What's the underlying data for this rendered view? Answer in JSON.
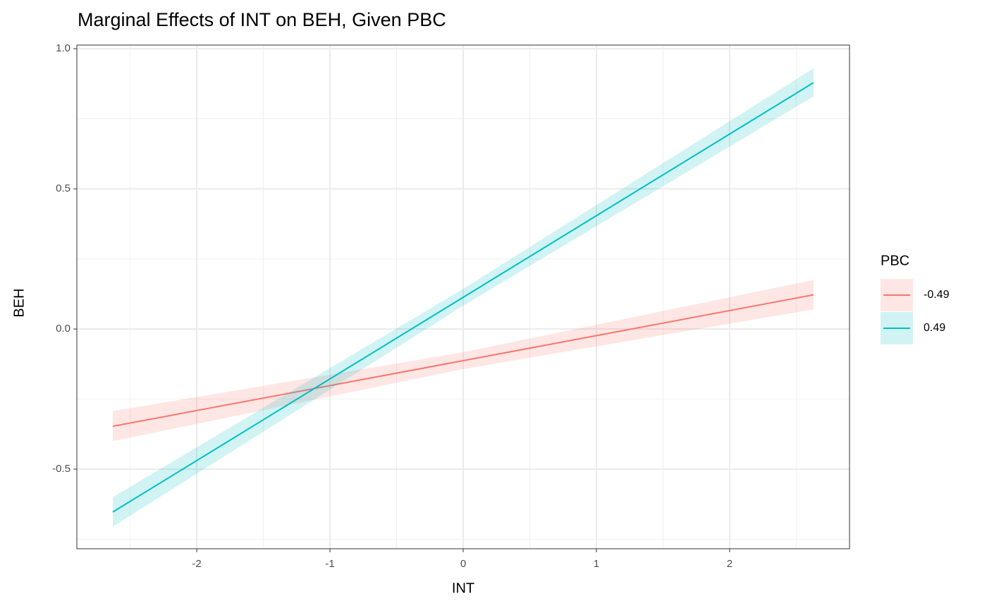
{
  "chart_data": {
    "type": "line",
    "title": "Marginal Effects of INT on BEH, Given PBC",
    "x_label": "INT",
    "y_label": "BEH",
    "legend_title": "PBC",
    "legend_position": "right",
    "xlim": [
      -2.9,
      2.9
    ],
    "xticks": [
      -2,
      -1,
      0,
      1,
      2
    ],
    "ylim": [
      -0.784,
      1.013
    ],
    "yticks": [
      -0.5,
      {
        "value": 0,
        "label": "0.0"
      },
      0.5,
      {
        "value": 1,
        "label": "1.0"
      }
    ],
    "x_minor_ticks": [
      -2.5,
      -1.5,
      -0.5,
      0.5,
      1.5,
      2.5
    ],
    "y_minor_ticks": [
      -0.75,
      -0.25,
      0.25,
      0.75
    ],
    "grid": true,
    "series": [
      {
        "name": "-0.49",
        "color": "#f8766d",
        "x": [
          -2.63,
          0,
          2.63
        ],
        "values": [
          -0.347,
          -0.113,
          0.122
        ],
        "lower": [
          -0.4,
          -0.143,
          0.07
        ],
        "upper": [
          -0.293,
          -0.083,
          0.175
        ]
      },
      {
        "name": "0.49",
        "color": "#00bfc4",
        "x": [
          -2.63,
          0,
          2.63
        ],
        "values": [
          -0.653,
          0.113,
          0.879
        ],
        "lower": [
          -0.705,
          0.083,
          0.83
        ],
        "upper": [
          -0.6,
          0.143,
          0.93
        ]
      }
    ]
  }
}
